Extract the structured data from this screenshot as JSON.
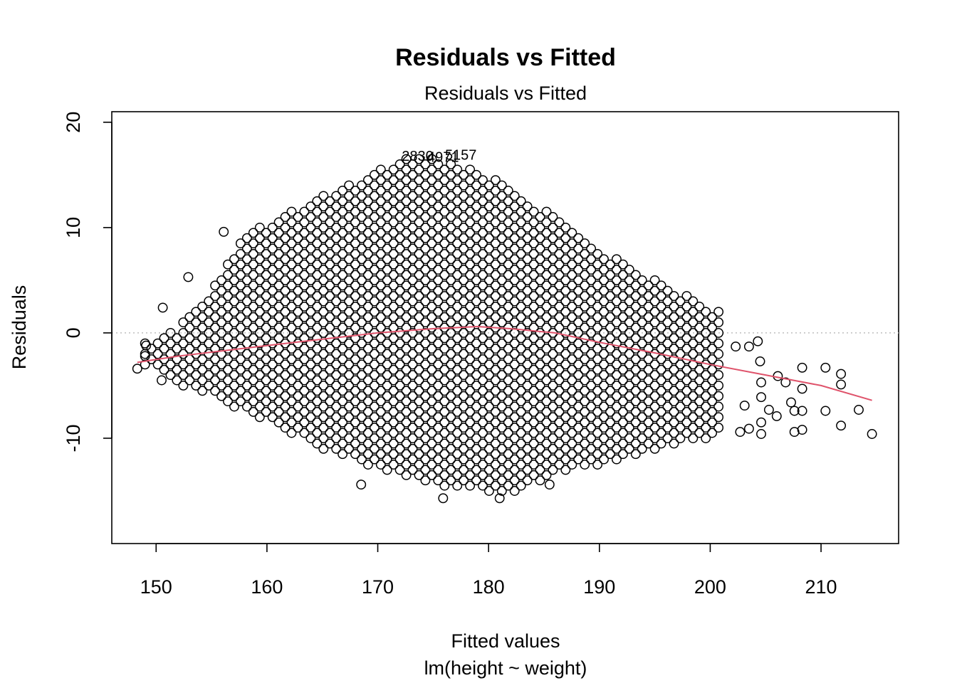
{
  "chart_data": {
    "type": "scatter",
    "title": "Residuals vs Fitted",
    "subtitle": "Residuals vs Fitted",
    "xlabel": "Fitted values",
    "xlabel_sub": "lm(height ~ weight)",
    "ylabel": "Residuals",
    "xlim": [
      146,
      217
    ],
    "ylim": [
      -20,
      21
    ],
    "x_ticks": [
      150,
      160,
      170,
      180,
      190,
      200,
      210
    ],
    "x_tick_labels": [
      "150",
      "160",
      "170",
      "180",
      "190",
      "200",
      "210"
    ],
    "y_ticks": [
      -10,
      0,
      10,
      20
    ],
    "y_tick_labels": [
      "-10",
      "0",
      "10",
      "20"
    ],
    "reference_line": {
      "y": 0,
      "style": "dotted",
      "color": "#bfbfbf"
    },
    "point_style": {
      "shape": "open-circle",
      "color": "#000000"
    },
    "lattice": {
      "description": "dense lattice of residuals: integer heights vs weights",
      "x_step": 1.15,
      "y_step": 1.0,
      "x_start": 149.0,
      "x_end": 201.0
    },
    "envelope": [
      [
        149,
        -3.0,
        -1.0
      ],
      [
        152,
        -5.0,
        0.5
      ],
      [
        155,
        -6.0,
        4.0
      ],
      [
        158,
        -7.5,
        9.5
      ],
      [
        160,
        -8.5,
        10.5
      ],
      [
        165,
        -11.0,
        13.0
      ],
      [
        170,
        -13.0,
        15.5
      ],
      [
        172,
        -13.5,
        16.5
      ],
      [
        176,
        -14.5,
        16.5
      ],
      [
        180,
        -15.0,
        15.0
      ],
      [
        183,
        -15.0,
        13.0
      ],
      [
        186,
        -13.5,
        11.0
      ],
      [
        190,
        -12.5,
        8.0
      ],
      [
        195,
        -11.0,
        5.0
      ],
      [
        200,
        -10.0,
        2.5
      ],
      [
        201,
        -9.5,
        2.0
      ]
    ],
    "outliers": [
      {
        "x": 148.3,
        "y": -3.4
      },
      {
        "x": 149.0,
        "y": -2.2
      },
      {
        "x": 149.1,
        "y": -1.2
      },
      {
        "x": 150.6,
        "y": 2.4
      },
      {
        "x": 150.5,
        "y": -4.5
      },
      {
        "x": 152.9,
        "y": 5.3
      },
      {
        "x": 156.1,
        "y": 9.6
      },
      {
        "x": 168.5,
        "y": -14.4
      },
      {
        "x": 175.9,
        "y": -15.7
      },
      {
        "x": 181.0,
        "y": -15.7
      },
      {
        "x": 185.5,
        "y": -14.4
      },
      {
        "x": 202.3,
        "y": -1.3
      },
      {
        "x": 203.5,
        "y": -1.3
      },
      {
        "x": 204.3,
        "y": -0.8
      },
      {
        "x": 203.1,
        "y": -6.9
      },
      {
        "x": 202.7,
        "y": -9.4
      },
      {
        "x": 203.5,
        "y": -9.1
      },
      {
        "x": 204.5,
        "y": -2.7
      },
      {
        "x": 204.6,
        "y": -4.7
      },
      {
        "x": 204.6,
        "y": -6.1
      },
      {
        "x": 204.6,
        "y": -8.5
      },
      {
        "x": 204.6,
        "y": -9.6
      },
      {
        "x": 205.3,
        "y": -7.3
      },
      {
        "x": 206.0,
        "y": -7.9
      },
      {
        "x": 206.1,
        "y": -4.1
      },
      {
        "x": 206.8,
        "y": -4.7
      },
      {
        "x": 207.3,
        "y": -6.6
      },
      {
        "x": 207.6,
        "y": -7.4
      },
      {
        "x": 207.6,
        "y": -9.4
      },
      {
        "x": 208.3,
        "y": -3.3
      },
      {
        "x": 208.3,
        "y": -5.3
      },
      {
        "x": 208.3,
        "y": -7.4
      },
      {
        "x": 208.3,
        "y": -9.2
      },
      {
        "x": 210.4,
        "y": -3.3
      },
      {
        "x": 210.4,
        "y": -7.4
      },
      {
        "x": 211.8,
        "y": -3.9
      },
      {
        "x": 211.8,
        "y": -4.9
      },
      {
        "x": 211.8,
        "y": -8.8
      },
      {
        "x": 213.4,
        "y": -7.3
      },
      {
        "x": 214.6,
        "y": -9.6
      }
    ],
    "smoother": {
      "color": "#DF536B",
      "x": [
        148.3,
        152,
        156,
        160,
        165,
        170,
        175,
        179,
        182,
        186,
        190,
        195,
        200,
        205,
        210,
        214.6
      ],
      "y": [
        -2.8,
        -2.2,
        -1.7,
        -1.2,
        -0.6,
        0.0,
        0.4,
        0.6,
        0.4,
        0.0,
        -0.9,
        -1.9,
        -3.0,
        -4.0,
        -5.0,
        -6.4
      ]
    },
    "labeled_points": [
      {
        "label": "2830",
        "x": 173.6,
        "y": 16.8
      },
      {
        "label": "4971",
        "x": 175.9,
        "y": 16.7
      },
      {
        "label": "5157",
        "x": 177.5,
        "y": 16.9
      }
    ]
  }
}
